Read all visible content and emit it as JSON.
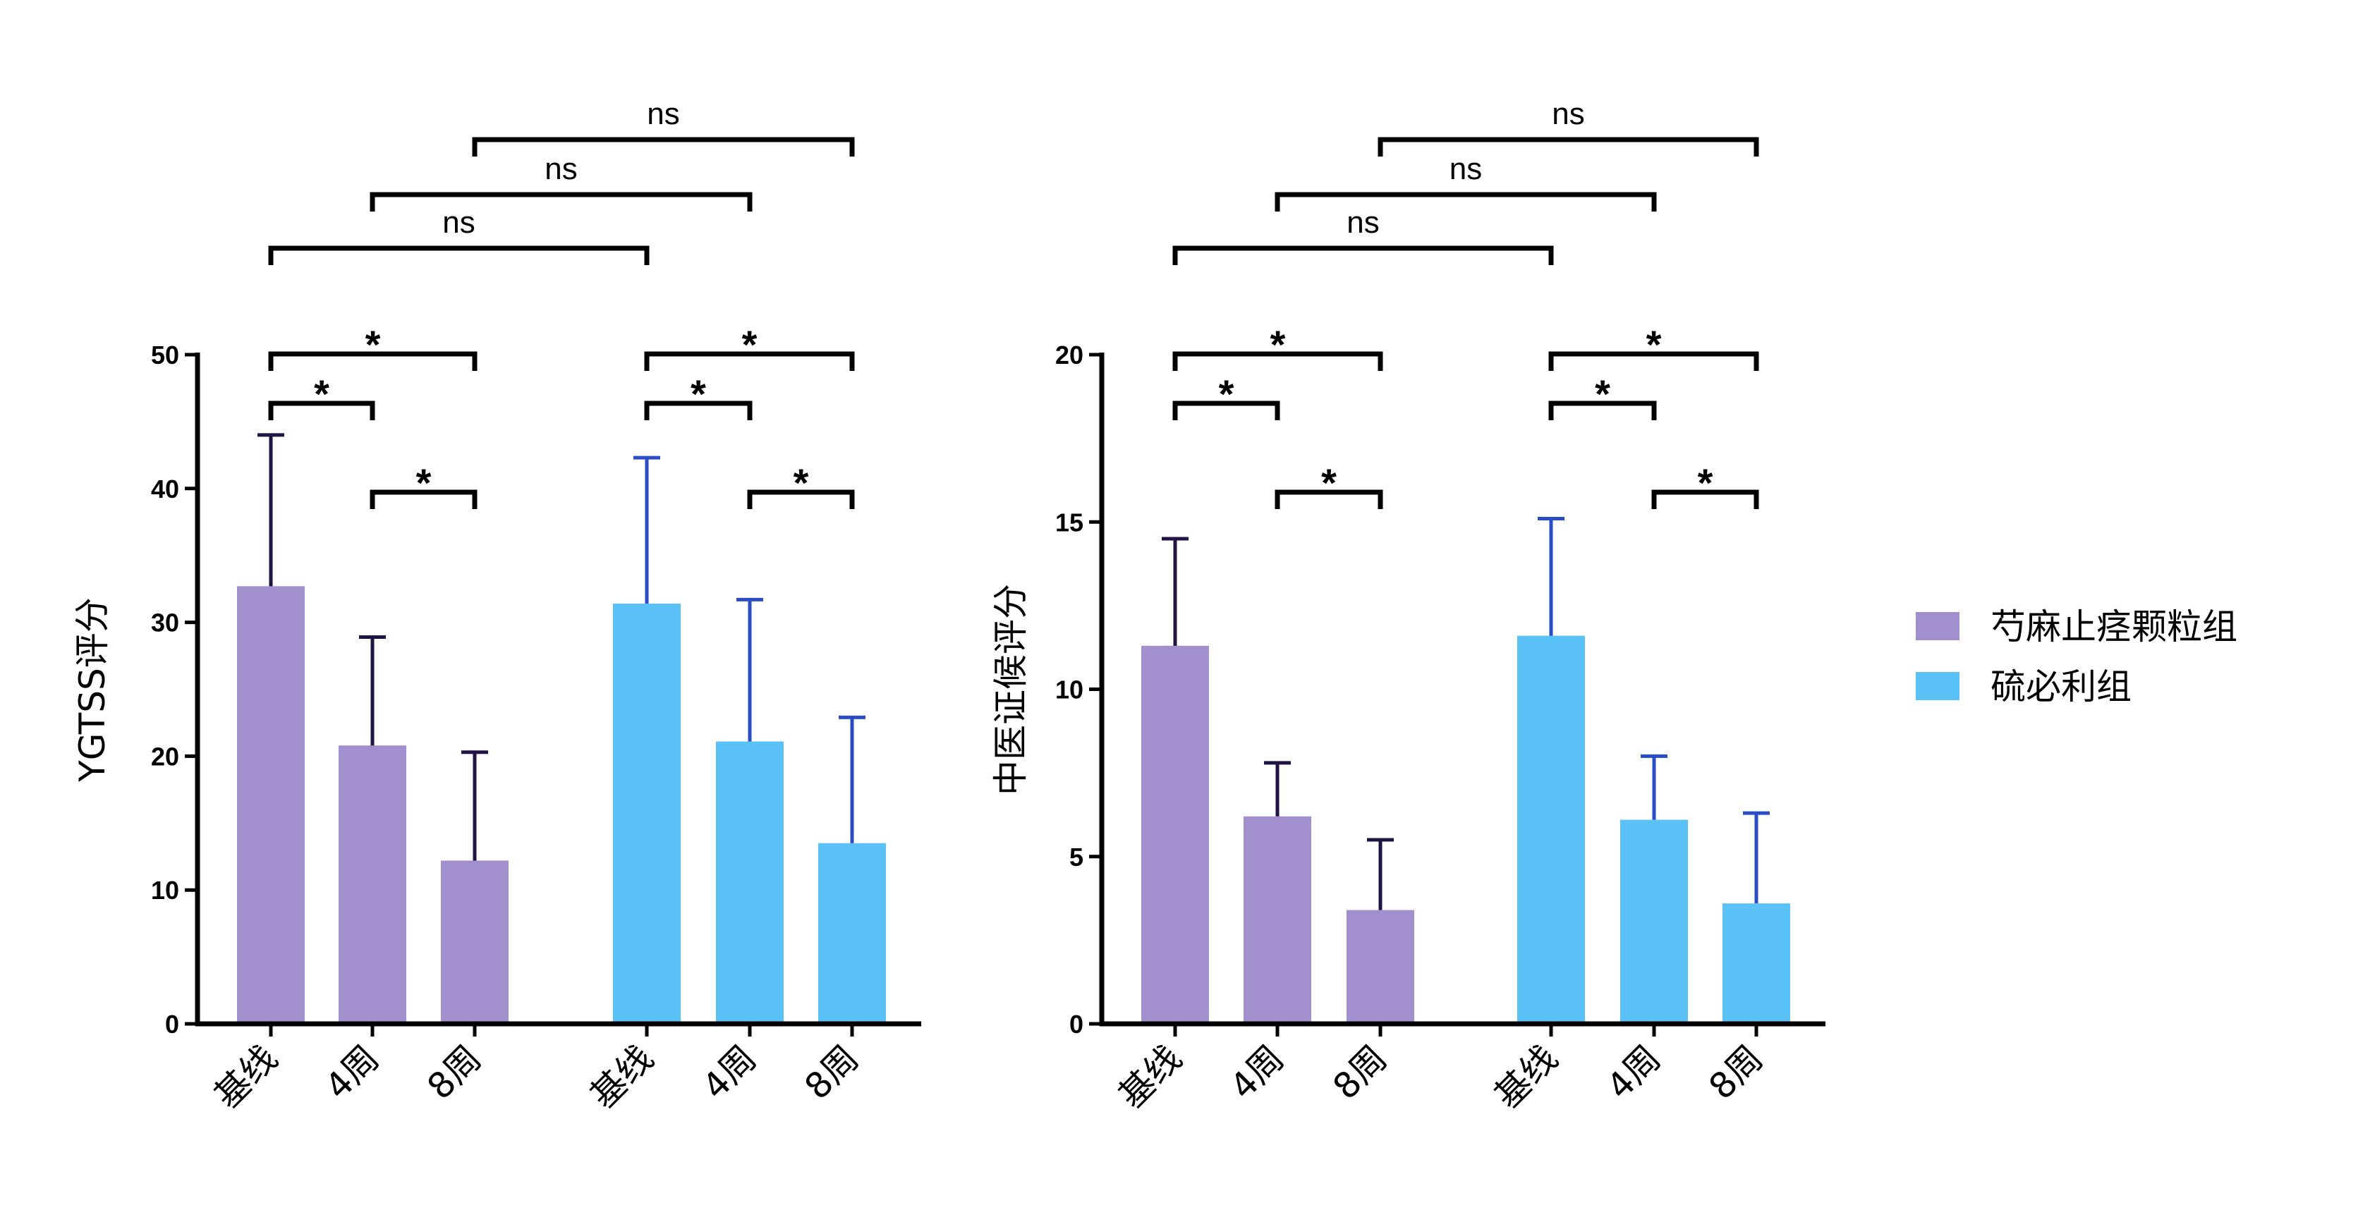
{
  "legend": [
    {
      "label": "芍麻止痉颗粒组",
      "color": "#a28fce"
    },
    {
      "label": "硫必利组",
      "color": "#5ac2f7"
    }
  ],
  "chart_data": [
    {
      "type": "bar",
      "ylabel": "YGTSS评分",
      "ylim": [
        0,
        50
      ],
      "yticks": [
        0,
        10,
        20,
        30,
        40,
        50
      ],
      "categories": [
        "基线",
        "4周",
        "8周"
      ],
      "series": [
        {
          "name": "芍麻止痉颗粒组",
          "values": [
            32.7,
            20.8,
            12.2
          ],
          "errors": [
            11.3,
            8.1,
            8.1
          ],
          "color": "#a28fce",
          "error_color": "#1f1443"
        },
        {
          "name": "硫必利组",
          "values": [
            31.4,
            21.1,
            13.5
          ],
          "errors": [
            10.9,
            10.6,
            9.4
          ],
          "color": "#5ac2f7",
          "error_color": "#2a4dc4"
        }
      ],
      "comparisons": [
        {
          "label": "ns",
          "from": [
            0,
            0
          ],
          "to": [
            1,
            0
          ]
        },
        {
          "label": "ns",
          "from": [
            0,
            1
          ],
          "to": [
            1,
            1
          ]
        },
        {
          "label": "ns",
          "from": [
            0,
            2
          ],
          "to": [
            1,
            2
          ]
        },
        {
          "label": "*",
          "from": [
            0,
            0
          ],
          "to": [
            0,
            1
          ]
        },
        {
          "label": "*",
          "from": [
            0,
            0
          ],
          "to": [
            0,
            2
          ]
        },
        {
          "label": "*",
          "from": [
            0,
            1
          ],
          "to": [
            0,
            2
          ]
        },
        {
          "label": "*",
          "from": [
            1,
            0
          ],
          "to": [
            1,
            1
          ]
        },
        {
          "label": "*",
          "from": [
            1,
            0
          ],
          "to": [
            1,
            2
          ]
        },
        {
          "label": "*",
          "from": [
            1,
            1
          ],
          "to": [
            1,
            2
          ]
        }
      ]
    },
    {
      "type": "bar",
      "ylabel": "中医证候评分",
      "ylim": [
        0,
        20
      ],
      "yticks": [
        0,
        5,
        10,
        15,
        20
      ],
      "categories": [
        "基线",
        "4周",
        "8周"
      ],
      "series": [
        {
          "name": "芍麻止痉颗粒组",
          "values": [
            11.3,
            6.2,
            3.4
          ],
          "errors": [
            3.2,
            1.6,
            2.1
          ],
          "color": "#a28fce",
          "error_color": "#1f1443"
        },
        {
          "name": "硫必利组",
          "values": [
            11.6,
            6.1,
            3.6
          ],
          "errors": [
            3.5,
            1.9,
            2.7
          ],
          "color": "#5ac2f7",
          "error_color": "#2a4dc4"
        }
      ],
      "comparisons": [
        {
          "label": "ns",
          "from": [
            0,
            0
          ],
          "to": [
            1,
            0
          ]
        },
        {
          "label": "ns",
          "from": [
            0,
            1
          ],
          "to": [
            1,
            1
          ]
        },
        {
          "label": "ns",
          "from": [
            0,
            2
          ],
          "to": [
            1,
            2
          ]
        },
        {
          "label": "*",
          "from": [
            0,
            0
          ],
          "to": [
            0,
            1
          ]
        },
        {
          "label": "*",
          "from": [
            0,
            0
          ],
          "to": [
            0,
            2
          ]
        },
        {
          "label": "*",
          "from": [
            0,
            1
          ],
          "to": [
            0,
            2
          ]
        },
        {
          "label": "*",
          "from": [
            1,
            0
          ],
          "to": [
            1,
            1
          ]
        },
        {
          "label": "*",
          "from": [
            1,
            0
          ],
          "to": [
            1,
            2
          ]
        },
        {
          "label": "*",
          "from": [
            1,
            1
          ],
          "to": [
            1,
            2
          ]
        }
      ]
    }
  ]
}
